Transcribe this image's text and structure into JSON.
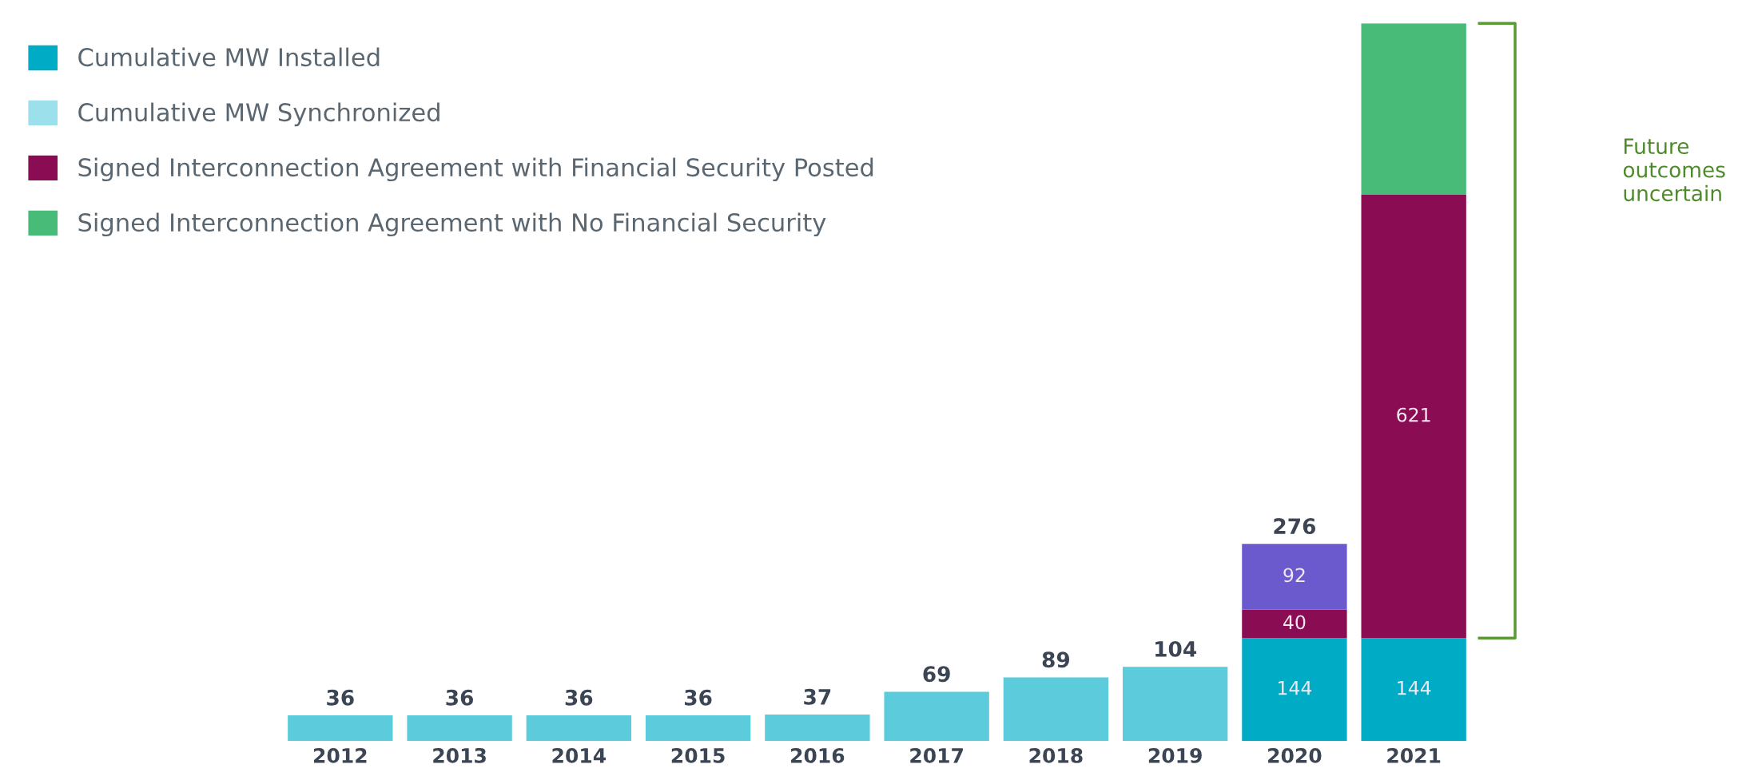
{
  "chart_data": {
    "type": "bar",
    "stacked": true,
    "categories": [
      "2012",
      "2013",
      "2014",
      "2015",
      "2016",
      "2017",
      "2018",
      "2019",
      "2020",
      "2021"
    ],
    "series": [
      {
        "name": "Cumulative MW Installed",
        "color": "#00abc6",
        "colors": [
          "#5ccbdc",
          "#5ccbdc",
          "#5ccbdc",
          "#5ccbdc",
          "#5ccbdc",
          "#5ccbdc",
          "#5ccbdc",
          "#5ccbdc",
          "#00abc6",
          "#00abc6"
        ],
        "values": [
          36,
          36,
          36,
          36,
          37,
          69,
          89,
          104,
          144,
          144
        ],
        "value_labels": [
          null,
          null,
          null,
          null,
          null,
          null,
          null,
          null,
          "144",
          "144"
        ]
      },
      {
        "name": "Cumulative MW Synchronized",
        "color": "#9be0ea",
        "values": [
          null,
          null,
          null,
          null,
          null,
          null,
          null,
          null,
          null,
          null
        ]
      },
      {
        "name": "Signed Interconnection Agreement with Financial Security Posted",
        "color": "#8a0c52",
        "values": [
          null,
          null,
          null,
          null,
          null,
          null,
          null,
          null,
          40,
          621
        ],
        "value_labels": [
          null,
          null,
          null,
          null,
          null,
          null,
          null,
          null,
          "40",
          "621"
        ]
      },
      {
        "color": "#6a5acd",
        "values": [
          null,
          null,
          null,
          null,
          null,
          null,
          null,
          null,
          92,
          null
        ],
        "value_labels": [
          null,
          null,
          null,
          null,
          null,
          null,
          null,
          null,
          "92",
          null
        ]
      },
      {
        "name": "Signed Interconnection Agreement with No Financial Security",
        "color": "#48bb78",
        "values": [
          null,
          null,
          null,
          null,
          null,
          null,
          null,
          null,
          null,
          240
        ]
      }
    ],
    "totals": [
      "36",
      "36",
      "36",
      "36",
      "37",
      "69",
      "89",
      "104",
      "276",
      null
    ],
    "annotations": [
      "Future outcomes uncertain"
    ],
    "legend": "top left",
    "tick_labels": "x",
    "grid": false
  }
}
